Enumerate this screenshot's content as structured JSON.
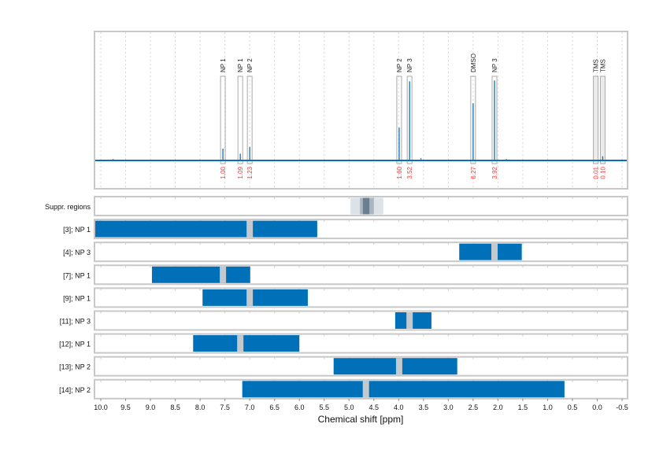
{
  "chart_data": {
    "type": "line",
    "xlabel": "Chemical shift [ppm]",
    "xlim": [
      10.13,
      -0.61
    ],
    "x_reversed": true,
    "grid": "vertical dotted every 0.5 ppm",
    "x_ticks": [
      "10.0",
      "9.5",
      "9.0",
      "8.5",
      "8.0",
      "7.5",
      "7.0",
      "6.5",
      "6.0",
      "5.5",
      "5.0",
      "4.5",
      "4.0",
      "3.5",
      "3.0",
      "2.5",
      "2.0",
      "1.5",
      "1.0",
      "0.5",
      "0.0",
      "-0.5"
    ],
    "colors": {
      "spectrum": "#0b6fb5",
      "integral_label": "#ff3333",
      "bar": "#0070b8",
      "marker": "#c4c9ce",
      "suppr_light": "#dbe2e8",
      "suppr_mid": "#a9b6c1",
      "suppr_dark": "#6b7f8e"
    },
    "spectrum_peaks": [
      {
        "label": "NP 1",
        "ppm": 7.54,
        "height": 0.14,
        "integral": "1.00"
      },
      {
        "label": "NP 1",
        "ppm": 7.19,
        "height": 0.08,
        "integral": "1.09"
      },
      {
        "label": "NP 2",
        "ppm": 7.0,
        "height": 0.16,
        "integral": "1.23"
      },
      {
        "label": "NP 2",
        "ppm": 3.99,
        "height": 0.39,
        "integral": "1.60"
      },
      {
        "label": "NP 3",
        "ppm": 3.78,
        "height": 0.94,
        "integral": "3.52"
      },
      {
        "label": "DMSO",
        "ppm": 2.5,
        "height": 0.68,
        "integral": "6.27"
      },
      {
        "label": "NP 3",
        "ppm": 2.07,
        "height": 0.95,
        "integral": "3.92"
      },
      {
        "label": "TMS",
        "ppm": 0.03,
        "height": 0.0,
        "integral": "0.01"
      },
      {
        "label": "TMS",
        "ppm": -0.11,
        "height": 0.05,
        "integral": "0.10"
      }
    ],
    "suppression": {
      "label": "Suppr. regions",
      "regions": [
        {
          "from": 4.97,
          "to": 4.31,
          "level": "light"
        },
        {
          "from": 4.78,
          "to": 4.5,
          "level": "mid"
        },
        {
          "from": 4.72,
          "to": 4.59,
          "level": "dark"
        }
      ]
    },
    "rows": [
      {
        "label": "[3]; NP 1",
        "from": 10.13,
        "to": 5.64,
        "marker": 7.0
      },
      {
        "label": "[4]; NP 3",
        "from": 2.78,
        "to": 1.52,
        "marker": 2.07
      },
      {
        "label": "[7]; NP 1",
        "from": 8.97,
        "to": 6.99,
        "marker": 7.54
      },
      {
        "label": "[9]; NP 1",
        "from": 7.95,
        "to": 5.83,
        "marker": 7.0
      },
      {
        "label": "[11]; NP 3",
        "from": 4.07,
        "to": 3.34,
        "marker": 3.78
      },
      {
        "label": "[12]; NP 1",
        "from": 8.14,
        "to": 6.0,
        "marker": 7.19
      },
      {
        "label": "[13]; NP 2",
        "from": 5.31,
        "to": 2.82,
        "marker": 3.99
      },
      {
        "label": "[14]; NP 2",
        "from": 7.15,
        "to": 0.66,
        "marker": 4.66
      }
    ]
  }
}
